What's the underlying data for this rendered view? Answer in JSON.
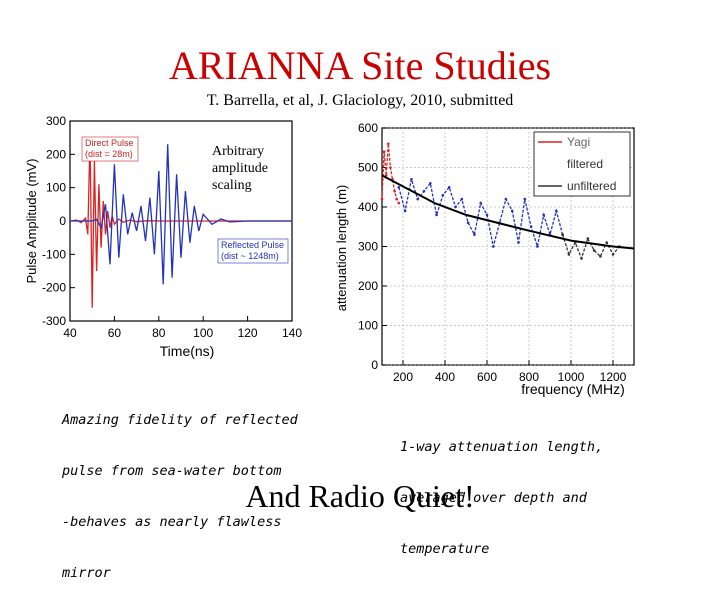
{
  "slide": {
    "title": "ARIANNA Site Studies",
    "subtitle": "T. Barrella, et al,  J. Glaciology, 2010, submitted",
    "left_caption_lines": [
      "Amazing fidelity of reflected",
      "pulse from sea-water bottom",
      "-behaves as nearly flawless",
      "mirror"
    ],
    "right_caption_lines": [
      "1-way attenuation length,",
      "averaged over depth and",
      "temperature"
    ],
    "overlay_lines": [
      "Arbitrary",
      "amplitude",
      "scaling"
    ],
    "bottom_text": "And Radio Quiet!"
  },
  "chart_data": [
    {
      "type": "line",
      "xlabel": "Time(ns)",
      "ylabel": "Pulse Amplitude (mV)",
      "xlim": [
        40,
        140
      ],
      "ylim": [
        -300,
        300
      ],
      "x_ticks": [
        "40",
        "60",
        "80",
        "100",
        "120",
        "140"
      ],
      "y_ticks": [
        "300",
        "200",
        "100",
        "0",
        "-100",
        "-200",
        "-300"
      ],
      "legend": [
        "Direct Pulse\n(dist = 28m)",
        "Reflected Pulse\n(dist ~ 1248m)"
      ],
      "series": [
        {
          "name": "Direct Pulse (dist = 28m)",
          "color": "#dd2222",
          "x": [
            40,
            43,
            45,
            47,
            48,
            49,
            50,
            51,
            52,
            53,
            54,
            55,
            56,
            57,
            58,
            59,
            60,
            62,
            64,
            67,
            70,
            75,
            80,
            90,
            100,
            110,
            120,
            130,
            140
          ],
          "y": [
            0,
            3,
            -5,
            8,
            -40,
            250,
            -260,
            180,
            -150,
            110,
            -80,
            60,
            -40,
            30,
            -20,
            15,
            -10,
            6,
            -4,
            3,
            -2,
            1,
            0,
            0,
            0,
            0,
            0,
            0,
            0
          ]
        },
        {
          "name": "Reflected Pulse (dist ~ 1248m)",
          "color": "#2233bb",
          "x": [
            40,
            50,
            52,
            54,
            56,
            58,
            60,
            62,
            64,
            66,
            68,
            70,
            72,
            74,
            76,
            78,
            80,
            82,
            84,
            86,
            88,
            90,
            92,
            94,
            96,
            98,
            100,
            104,
            108,
            112,
            120,
            130,
            140
          ],
          "y": [
            0,
            0,
            5,
            -20,
            50,
            -130,
            170,
            -110,
            80,
            -40,
            25,
            -30,
            45,
            -60,
            70,
            -100,
            150,
            -190,
            230,
            -170,
            140,
            -110,
            90,
            -65,
            45,
            -30,
            20,
            -10,
            6,
            -3,
            0,
            0,
            0
          ]
        }
      ]
    },
    {
      "type": "line",
      "xlabel": "frequency (MHz)",
      "ylabel": "attenuation length (m)",
      "xlim": [
        100,
        1300
      ],
      "ylim": [
        0,
        600
      ],
      "x_ticks": [
        "200",
        "400",
        "600",
        "800",
        "1000",
        "1200"
      ],
      "y_ticks": [
        "600",
        "500",
        "400",
        "300",
        "200",
        "100",
        "0"
      ],
      "legend": [
        "Yagi",
        "filtered",
        "unfiltered"
      ],
      "series": [
        {
          "name": "Yagi",
          "color": "#dd2222",
          "x": [
            100,
            110,
            120,
            130,
            140,
            150,
            160,
            170,
            180
          ],
          "y": [
            420,
            540,
            480,
            560,
            500,
            470,
            440,
            420,
            410
          ]
        },
        {
          "name": "filtered",
          "color": "#2233bb",
          "x": [
            180,
            210,
            240,
            270,
            300,
            330,
            360,
            390,
            420,
            450,
            480,
            510,
            540,
            570,
            600,
            630,
            660,
            690,
            720,
            750,
            780,
            810,
            840,
            870,
            900,
            930,
            960
          ],
          "y": [
            450,
            390,
            470,
            420,
            440,
            460,
            380,
            430,
            450,
            400,
            420,
            360,
            330,
            410,
            380,
            300,
            360,
            420,
            390,
            310,
            420,
            350,
            300,
            380,
            330,
            390,
            330
          ]
        },
        {
          "name": "unfiltered",
          "color": "#333333",
          "x": [
            960,
            990,
            1020,
            1050,
            1080,
            1110,
            1140,
            1170,
            1200,
            1230
          ],
          "y": [
            330,
            280,
            310,
            270,
            320,
            290,
            275,
            310,
            280,
            300
          ]
        },
        {
          "name": "fit",
          "color": "#000000",
          "x": [
            100,
            350,
            500,
            800,
            1000,
            1200,
            1300
          ],
          "y": [
            480,
            410,
            380,
            340,
            315,
            300,
            295
          ]
        }
      ]
    }
  ]
}
